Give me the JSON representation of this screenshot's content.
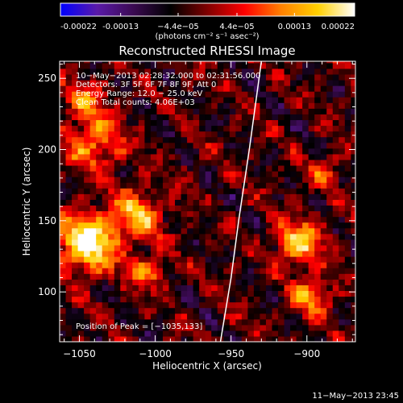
{
  "chart_data": {
    "type": "heatmap",
    "title": "Reconstructed RHESSI Image",
    "xlabel": "Heliocentric X (arcsec)",
    "ylabel": "Heliocentric Y (arcsec)",
    "xlim": [
      -1063,
      -868
    ],
    "ylim": [
      65,
      262
    ],
    "x_ticks": [
      -1050,
      -1000,
      -950,
      -900
    ],
    "x_tick_labels": [
      "−1050",
      "−1000",
      "−950",
      "−900"
    ],
    "y_ticks": [
      100,
      150,
      200,
      250
    ],
    "y_tick_labels": [
      "100",
      "150",
      "200",
      "250"
    ],
    "colorbar": {
      "range": [
        -0.00022,
        0.00022
      ],
      "ticks": [
        -0.00022,
        -0.00013,
        -4.4e-05,
        4.4e-05,
        0.00013,
        0.00022
      ],
      "tick_labels": [
        "-0.00022",
        "-0.00013",
        "−4.4e−05",
        "4.4e−05",
        "0.00013",
        "0.00022"
      ],
      "units": "(photons cm⁻² s⁻¹ asec⁻²)",
      "colors": [
        "#0000ff",
        "#5a1aa8",
        "#3a0a50",
        "#000000",
        "#800000",
        "#ff0000",
        "#ff8000",
        "#ffd000",
        "#ffffff"
      ]
    },
    "limb_curve": [
      [
        -957,
        65
      ],
      [
        -950,
        110
      ],
      [
        -945,
        150
      ],
      [
        -938,
        200
      ],
      [
        -930,
        262
      ]
    ],
    "annotations": [
      "10−May−2013 02:28:32.000 to 02:31:56.000",
      "Detectors: 3F 5F 6F 7F 8F 9F, Att 0",
      "Energy Range: 12.0 − 25.0 keV",
      "Clean     Total counts: 4.06E+03",
      "Position of Peak = [−1035,133]"
    ],
    "sources": [
      {
        "x": -1045,
        "y": 135,
        "sigma": 14,
        "amplitude": 1.0
      },
      {
        "x": -1012,
        "y": 155,
        "sigma": 12,
        "amplitude": 0.65
      },
      {
        "x": -1040,
        "y": 205,
        "sigma": 13,
        "amplitude": 0.6
      },
      {
        "x": -1005,
        "y": 115,
        "sigma": 8,
        "amplitude": 0.55
      },
      {
        "x": -1045,
        "y": 235,
        "sigma": 9,
        "amplitude": 0.5
      },
      {
        "x": -905,
        "y": 135,
        "sigma": 11,
        "amplitude": 0.75
      },
      {
        "x": -897,
        "y": 97,
        "sigma": 9,
        "amplitude": 0.6
      },
      {
        "x": -888,
        "y": 185,
        "sigma": 8,
        "amplitude": 0.35
      }
    ]
  },
  "footer": {
    "timestamp": "11−May−2013 23:45"
  }
}
